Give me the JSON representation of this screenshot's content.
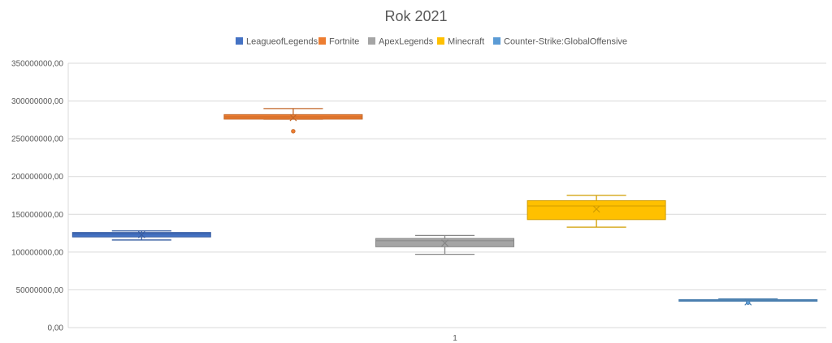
{
  "chart_data": {
    "type": "boxplot",
    "title": "Rok 2021",
    "xlabel": "",
    "ylabel": "",
    "x_tick_labels": [
      "1"
    ],
    "ylim": [
      0,
      350000000
    ],
    "y_ticks": [
      0,
      50000000,
      100000000,
      150000000,
      200000000,
      250000000,
      300000000,
      350000000
    ],
    "y_tick_labels": [
      "0,00",
      "50000000,00",
      "100000000,00",
      "150000000,00",
      "200000000,00",
      "250000000,00",
      "300000000,00",
      "350000000,00"
    ],
    "grid": true,
    "legend_position": "top",
    "series": [
      {
        "name": "LeagueofLegends",
        "color": "#4472C4",
        "min": 116000000,
        "q1": 120000000,
        "median": 124000000,
        "q3": 126000000,
        "max": 128000000,
        "mean": 123000000,
        "outliers": []
      },
      {
        "name": "Fortnite",
        "color": "#ED7D31",
        "min": 276000000,
        "q1": 276000000,
        "median": 279000000,
        "q3": 282000000,
        "max": 290000000,
        "mean": 278000000,
        "outliers": [
          260000000
        ]
      },
      {
        "name": "ApexLegends",
        "color": "#A5A5A5",
        "min": 97000000,
        "q1": 107000000,
        "median": 115000000,
        "q3": 118000000,
        "max": 122000000,
        "mean": 112000000,
        "outliers": []
      },
      {
        "name": "Minecraft",
        "color": "#FFC000",
        "min": 133000000,
        "q1": 143000000,
        "median": 161000000,
        "q3": 168000000,
        "max": 175000000,
        "mean": 157000000,
        "outliers": []
      },
      {
        "name": "Counter-Strike:GlobalOffensive",
        "color": "#5B9BD5",
        "min": 35000000,
        "q1": 35000000,
        "median": 36000000,
        "q3": 37000000,
        "max": 38000000,
        "mean": 34000000,
        "outliers": [
          33000000
        ]
      }
    ]
  }
}
